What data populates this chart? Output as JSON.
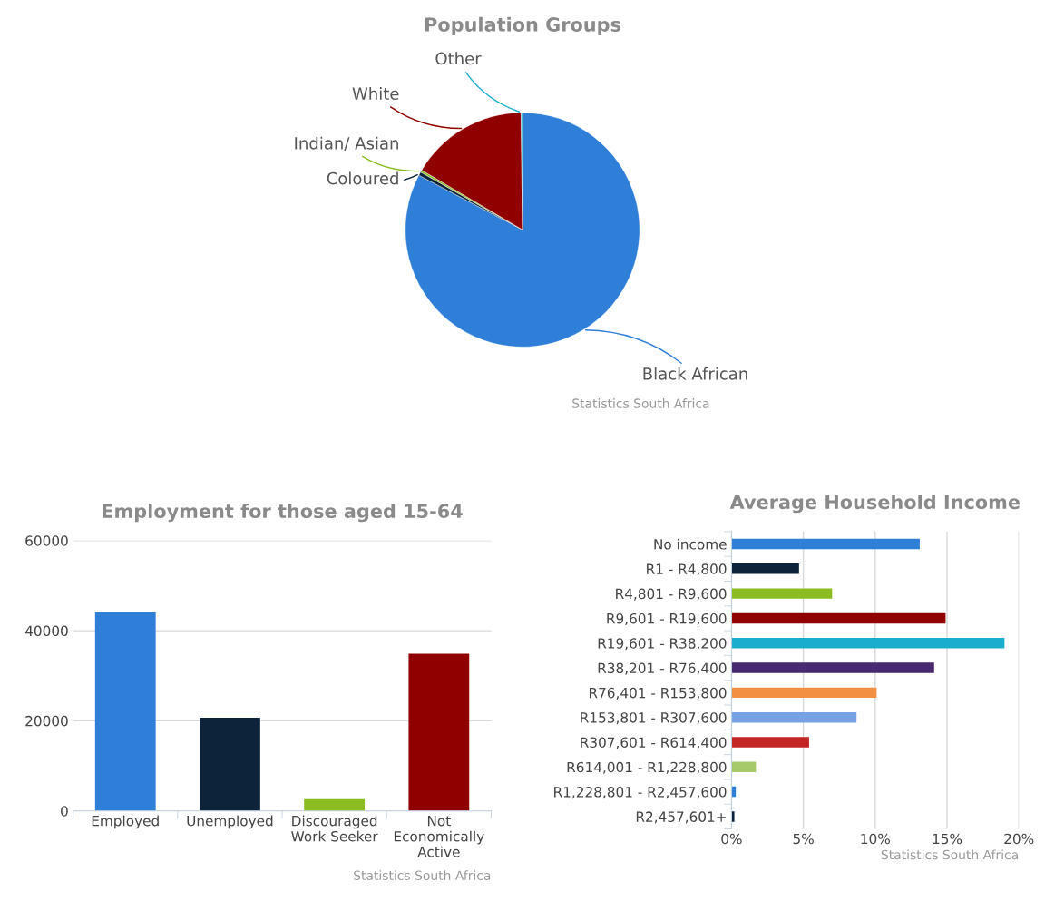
{
  "chart_data": [
    {
      "type": "pie",
      "title": "Population Groups",
      "categories": [
        "Black African",
        "Coloured",
        "Indian/ Asian",
        "White",
        "Other"
      ],
      "values": [
        82.7,
        0.5,
        0.3,
        16.3,
        0.2
      ],
      "colors": [
        "#2f7ed8",
        "#0d233a",
        "#8bbc21",
        "#910000",
        "#1aadce"
      ],
      "annotations": [
        "Statistics South Africa"
      ]
    },
    {
      "type": "bar",
      "title": "Employment for those aged 15-64",
      "categories": [
        "Employed",
        "Unemployed",
        "Discouraged Work Seeker",
        "Not Economically Active"
      ],
      "values": [
        44100,
        20700,
        2600,
        34900
      ],
      "colors": [
        "#2f7ed8",
        "#0d233a",
        "#8bbc21",
        "#910000"
      ],
      "ylim": [
        0,
        60000
      ],
      "yticks": [
        0,
        20000,
        40000,
        60000
      ],
      "grid": "y",
      "annotations": [
        "Statistics South Africa"
      ]
    },
    {
      "type": "bar",
      "orientation": "horizontal",
      "title": "Average Household Income",
      "categories": [
        "No income",
        "R1 - R4,800",
        "R4,801 - R9,600",
        "R9,601 - R19,600",
        "R19,601 - R38,200",
        "R38,201 - R76,400",
        "R76,401 - R153,800",
        "R153,801 - R307,600",
        "R307,601 - R614,400",
        "R614,001 - R1,228,800",
        "R1,228,801 - R2,457,600",
        "R2,457,601+"
      ],
      "values": [
        13.1,
        4.7,
        7.0,
        14.9,
        19.0,
        14.1,
        10.1,
        8.7,
        5.4,
        1.7,
        0.3,
        0.2
      ],
      "colors": [
        "#2f7ed8",
        "#0d233a",
        "#8bbc21",
        "#910000",
        "#1aadce",
        "#492970",
        "#f28f43",
        "#77a1e5",
        "#c42525",
        "#a6c96a",
        "#2f7ed8",
        "#0d233a"
      ],
      "xlim": [
        0,
        20
      ],
      "xticks": [
        {
          "value": 0,
          "label": "0%"
        },
        {
          "value": 5,
          "label": "5%"
        },
        {
          "value": 10,
          "label": "10%"
        },
        {
          "value": 15,
          "label": "15%"
        },
        {
          "value": 20,
          "label": "20%"
        }
      ],
      "grid": "x",
      "annotations": [
        "Statistics South Africa"
      ]
    }
  ]
}
